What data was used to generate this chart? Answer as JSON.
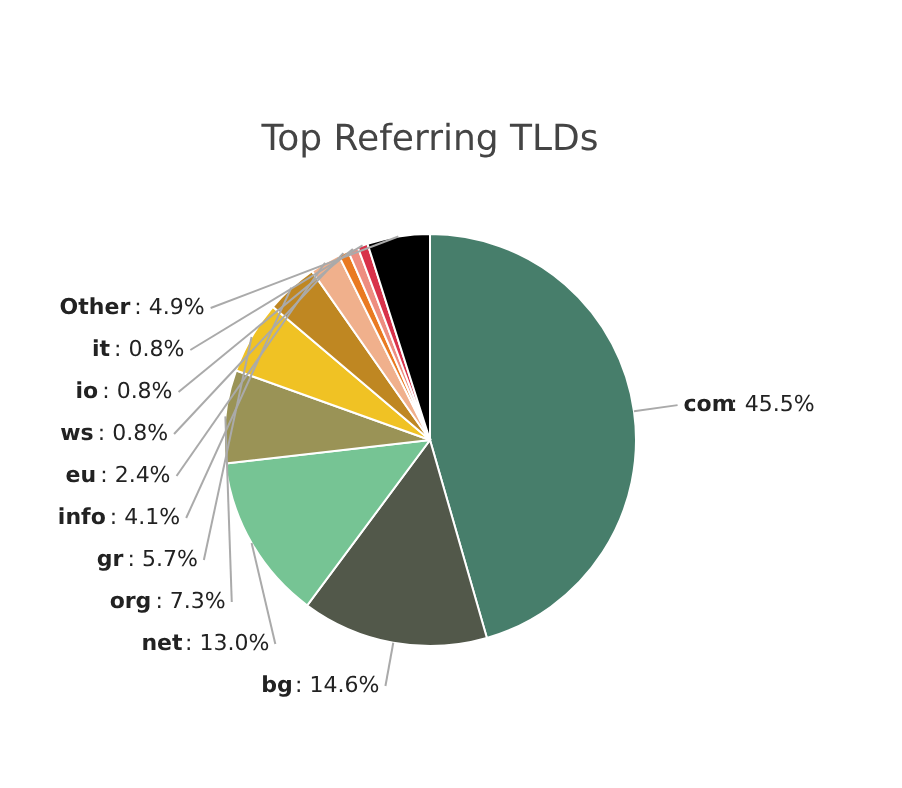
{
  "chart_data": {
    "type": "pie",
    "title": "Top Referring TLDs",
    "categories": [
      "com",
      "bg",
      "net",
      "org",
      "gr",
      "info",
      "eu",
      "ws",
      "io",
      "it",
      "Other"
    ],
    "values": [
      45.5,
      14.6,
      13.0,
      7.3,
      5.7,
      4.1,
      2.4,
      0.8,
      0.8,
      0.8,
      4.9
    ],
    "colors": [
      "#477e6b",
      "#52584a",
      "#76c494",
      "#9a9356",
      "#f0c224",
      "#bf8722",
      "#f0b08c",
      "#e97a22",
      "#ee8d80",
      "#d8324a",
      "#000000"
    ],
    "value_labels": [
      ": 45.5%",
      ": 14.6%",
      ": 13.0%",
      ": 7.3%",
      ": 5.7%",
      ": 4.1%",
      ": 2.4%",
      ": 0.8%",
      ": 0.8%",
      ": 0.8%",
      ": 4.9%"
    ]
  }
}
